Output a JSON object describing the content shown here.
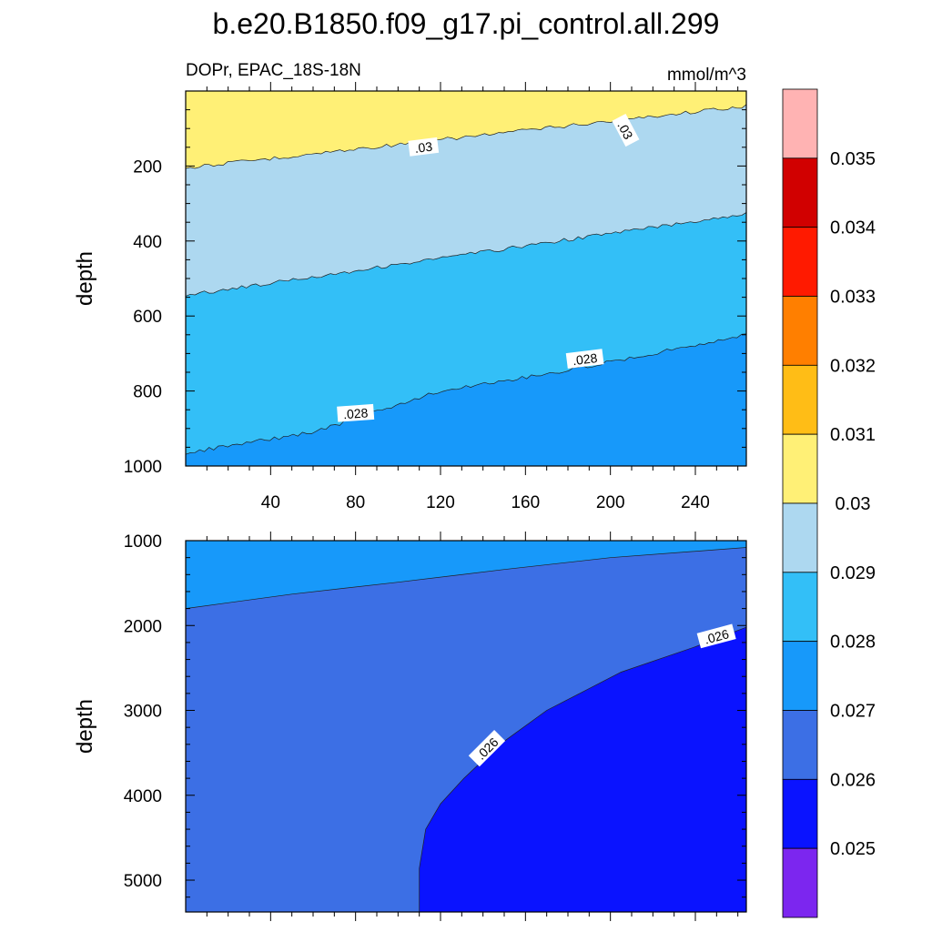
{
  "chart_data": [
    {
      "type": "contour",
      "title": "b.e20.B1850.f09_g17.pi_control.all.299",
      "subtitle_left": "DOPr, EPAC_18S-18N",
      "subtitle_right": "mmol/m^3",
      "xlabel": "",
      "ylabel": "depth",
      "xlim": [
        0,
        264
      ],
      "ylim": [
        1000,
        0
      ],
      "x_ticks": [
        40,
        80,
        120,
        160,
        200,
        240
      ],
      "x_tick_labels": [
        "40",
        "80",
        "120",
        "160",
        "200",
        "240"
      ],
      "y_ticks": [
        200,
        400,
        600,
        800,
        1000
      ],
      "y_tick_labels": [
        "200",
        "400",
        "600",
        "800",
        "1000"
      ],
      "regions": [
        {
          "name": "0.030-0.031",
          "color": "#fff076",
          "boundary": null
        },
        {
          "name": "0.029-0.030",
          "color": "#add8f0",
          "boundary": [
            [
              0,
              205
            ],
            [
              264,
              40
            ]
          ]
        },
        {
          "name": "0.028-0.029",
          "color": "#33bff7",
          "boundary": [
            [
              0,
              545
            ],
            [
              264,
              327
            ]
          ]
        },
        {
          "name": "0.027-0.028",
          "color": "#1799fa",
          "boundary": [
            [
              0,
              965
            ],
            [
              60,
              910
            ],
            [
              120,
              800
            ],
            [
              180,
              745
            ],
            [
              264,
              650
            ]
          ]
        }
      ],
      "contour_labels": [
        {
          "text": ".03",
          "x": 112,
          "y": 150,
          "angle": -7
        },
        {
          "text": ".03",
          "x": 207,
          "y": 105,
          "angle": 62
        },
        {
          "text": ".028",
          "x": 80,
          "y": 860,
          "angle": -4
        },
        {
          "text": ".028",
          "x": 188,
          "y": 715,
          "angle": -7
        }
      ]
    },
    {
      "type": "contour",
      "title": "",
      "xlabel": "",
      "ylabel": "depth",
      "xlim": [
        0,
        264
      ],
      "ylim": [
        5375,
        1000
      ],
      "x_ticks": [
        40,
        80,
        120,
        160,
        200,
        240
      ],
      "x_tick_labels": [],
      "y_ticks": [
        1000,
        2000,
        3000,
        4000,
        5000
      ],
      "y_tick_labels": [
        "1000",
        "2000",
        "3000",
        "4000",
        "5000"
      ],
      "regions": [
        {
          "name": "0.027-0.028",
          "color": "#1799fa",
          "boundary": null
        },
        {
          "name": "0.026-0.027",
          "color": "#3c6fe5",
          "boundary": [
            [
              0,
              1800
            ],
            [
              50,
              1630
            ],
            [
              100,
              1490
            ],
            [
              150,
              1340
            ],
            [
              200,
              1200
            ],
            [
              264,
              1080
            ]
          ]
        },
        {
          "name": "0.025-0.026",
          "color": "#0a13ff",
          "boundary": [
            [
              110,
              5375
            ],
            [
              110,
              4860
            ],
            [
              113,
              4400
            ],
            [
              120,
              4100
            ],
            [
              131,
              3800
            ],
            [
              148,
              3400
            ],
            [
              170,
              3000
            ],
            [
              205,
              2550
            ],
            [
              240,
              2250
            ],
            [
              264,
              2020
            ]
          ]
        }
      ],
      "contour_labels": [
        {
          "text": ".026",
          "x": 142,
          "y": 3450,
          "angle": -45
        },
        {
          "text": ".026",
          "x": 250,
          "y": 2130,
          "angle": -15
        }
      ]
    }
  ],
  "colorbar": {
    "colors": [
      "#ffb3b3",
      "#d10000",
      "#ff1a00",
      "#ff7f00",
      "#ffbd16",
      "#fff076",
      "#add8f0",
      "#33bff7",
      "#1799fa",
      "#3c6fe5",
      "#0a13ff",
      "#7c26ef"
    ],
    "labels": [
      "0.035",
      "0.034",
      "0.033",
      "0.032",
      "0.031",
      "0.03",
      "0.029",
      "0.028",
      "0.027",
      "0.026",
      "0.025"
    ]
  }
}
